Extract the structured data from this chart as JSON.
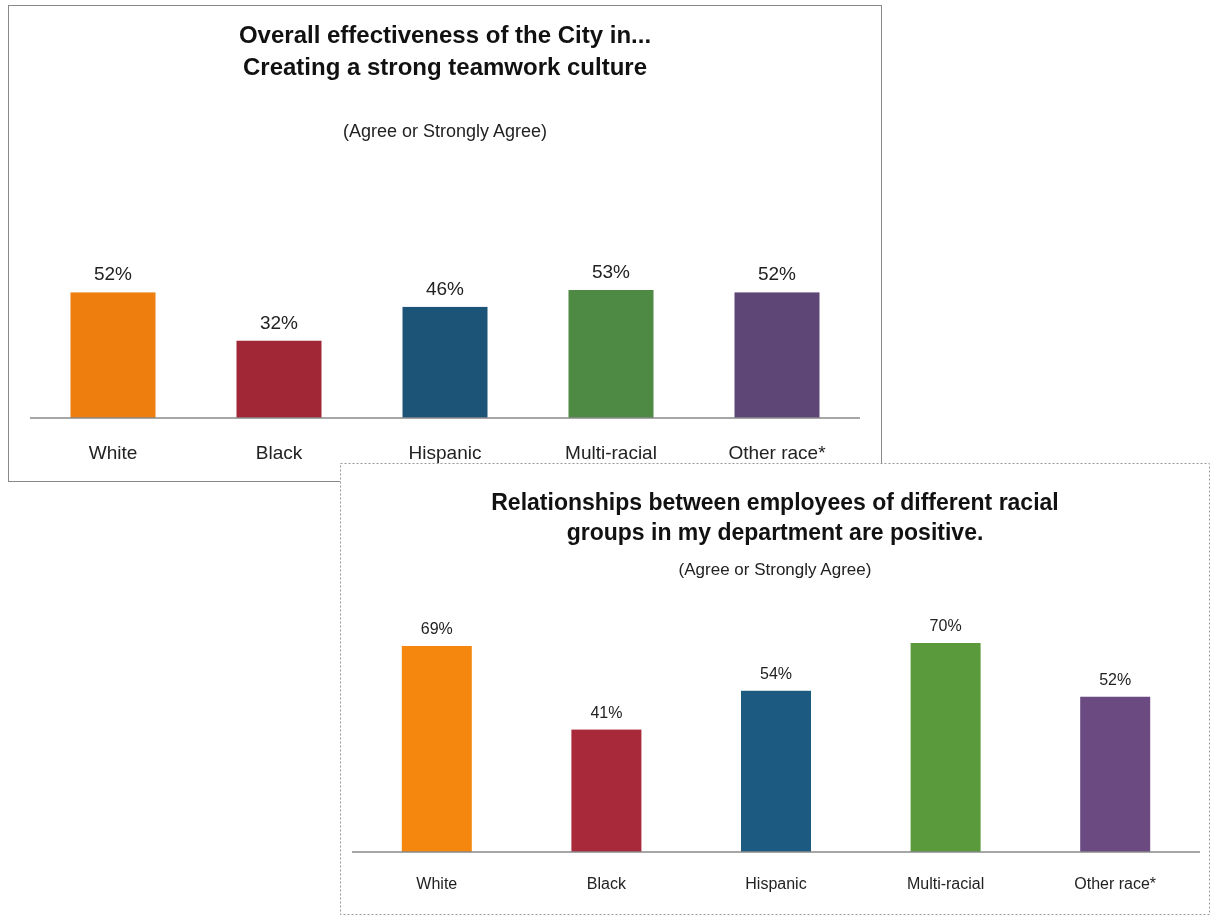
{
  "chart_data": [
    {
      "type": "bar",
      "title": "Overall effectiveness of the City in...\nCreating a strong teamwork culture",
      "subtitle": "(Agree or Strongly Agree)",
      "categories": [
        "White",
        "Black",
        "Hispanic",
        "Multi-racial",
        "Other race*"
      ],
      "values": [
        52,
        32,
        46,
        53,
        52
      ],
      "value_labels": [
        "52%",
        "32%",
        "46%",
        "53%",
        "52%"
      ],
      "colors": [
        "#ee7f0f",
        "#a12736",
        "#1c5478",
        "#4e8a43",
        "#5e4677"
      ],
      "tick_labels": "x"
    },
    {
      "type": "bar",
      "title": "Relationships between employees of different racial\ngroups in my department are positive.",
      "subtitle": "(Agree or Strongly Agree)",
      "categories": [
        "White",
        "Black",
        "Hispanic",
        "Multi-racial",
        "Other race*"
      ],
      "values": [
        69,
        41,
        54,
        70,
        52
      ],
      "value_labels": [
        "69%",
        "41%",
        "54%",
        "70%",
        "52%"
      ],
      "colors": [
        "#f5870f",
        "#a82a3a",
        "#1d5a82",
        "#5a9a3c",
        "#6a4a80"
      ],
      "tick_labels": "x"
    }
  ]
}
